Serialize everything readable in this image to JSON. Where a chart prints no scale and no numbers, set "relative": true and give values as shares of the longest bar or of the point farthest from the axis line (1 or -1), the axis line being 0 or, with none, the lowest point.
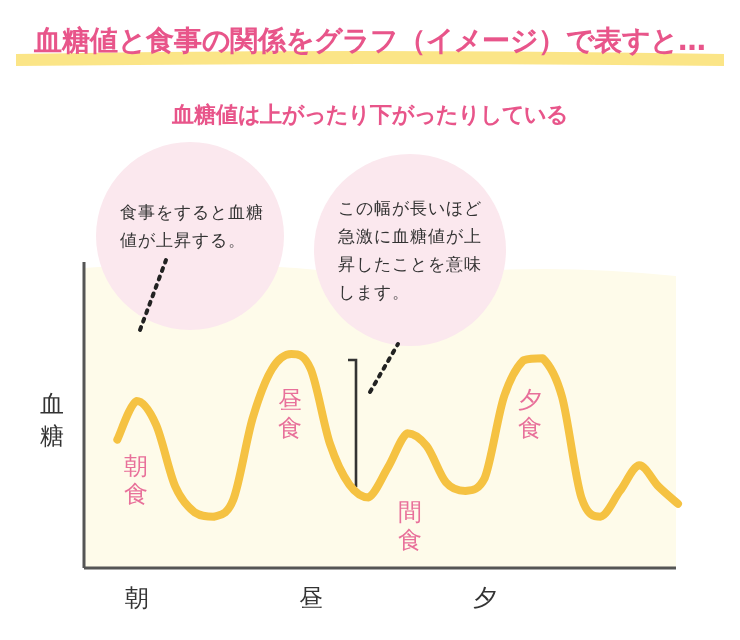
{
  "chart_data": {
    "type": "line",
    "title": "血糖値と食事の関係をグラフ（イメージ）で表すと…",
    "subtitle": "血糖値は上がったり下がったりしている",
    "ylabel": "血糖",
    "relative": true,
    "categories": [
      null,
      null,
      "朝",
      null,
      null,
      null,
      null,
      null,
      null,
      null,
      null,
      "昼",
      null,
      null,
      null,
      null,
      null,
      null,
      null,
      null,
      "夕",
      null,
      null,
      null,
      null,
      null,
      null,
      null,
      null,
      null,
      null
    ],
    "series": [
      {
        "color": "#f5c242",
        "values": [
          null,
          0.6,
          0.78,
          0.67,
          0.38,
          0.26,
          0.24,
          0.32,
          0.7,
          0.93,
          1,
          0.93,
          0.58,
          0.39,
          0.33,
          0.47,
          0.63,
          0.57,
          0.4,
          0.36,
          0.42,
          0.8,
          0.97,
          0.98,
          0.8,
          0.33,
          0.24,
          0.36,
          0.48,
          0.38,
          0.3
        ]
      }
    ],
    "annotations": [
      "朝食",
      "昼食",
      "間食",
      "夕食",
      "食事をすると血糖値が上昇する。",
      "この幅が長いほど急激に血糖値が上昇したことを意味します。"
    ],
    "marker": "none",
    "line_style": "solid"
  }
}
